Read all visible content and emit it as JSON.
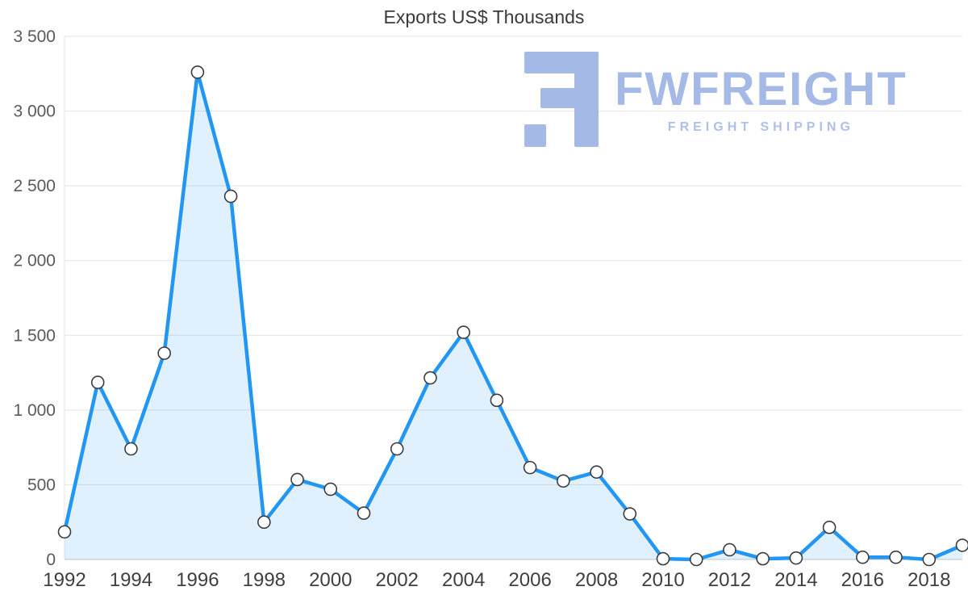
{
  "title": "Exports US$ Thousands",
  "logo": {
    "text": "FWFREIGHT",
    "subtext": "FREIGHT SHIPPING",
    "color": "#A5B9E7",
    "sub_color": "#AEBFE9"
  },
  "colors": {
    "line": "#2196F3",
    "fill": "#2196F3",
    "fill_opacity": 0.14,
    "marker_fill": "#FFFFFF",
    "marker_stroke": "#3C3C3C",
    "grid": "#E4E4E4",
    "axis_line": "#C8C8C8",
    "x_tick_text": "#3F3F3F",
    "y_tick_text": "#5A5A5A",
    "title_text": "#3A3A3A"
  },
  "chart_data": {
    "type": "area",
    "title": "Exports US$ Thousands",
    "xlabel": "",
    "ylabel": "",
    "x": [
      1992,
      1993,
      1994,
      1995,
      1996,
      1997,
      1998,
      1999,
      2000,
      2001,
      2002,
      2003,
      2004,
      2005,
      2006,
      2007,
      2008,
      2009,
      2010,
      2011,
      2012,
      2013,
      2014,
      2015,
      2016,
      2017,
      2018,
      2019
    ],
    "values": [
      185,
      1185,
      740,
      1380,
      3260,
      2430,
      250,
      535,
      470,
      310,
      740,
      1215,
      1520,
      1065,
      615,
      525,
      585,
      305,
      5,
      0,
      65,
      5,
      10,
      215,
      15,
      15,
      0,
      95
    ],
    "ylim": [
      0,
      3500
    ],
    "yticks": [
      {
        "value": 0,
        "label": "0"
      },
      {
        "value": 500,
        "label": "500"
      },
      {
        "value": 1000,
        "label": "1 000"
      },
      {
        "value": 1500,
        "label": "1 500"
      },
      {
        "value": 2000,
        "label": "2 000"
      },
      {
        "value": 2500,
        "label": "2 500"
      },
      {
        "value": 3000,
        "label": "3 000"
      },
      {
        "value": 3500,
        "label": "3 500"
      }
    ],
    "xticks": [
      1992,
      1994,
      1996,
      1998,
      2000,
      2002,
      2004,
      2006,
      2008,
      2010,
      2012,
      2014,
      2016,
      2018
    ],
    "grid": true,
    "legend": "none"
  }
}
